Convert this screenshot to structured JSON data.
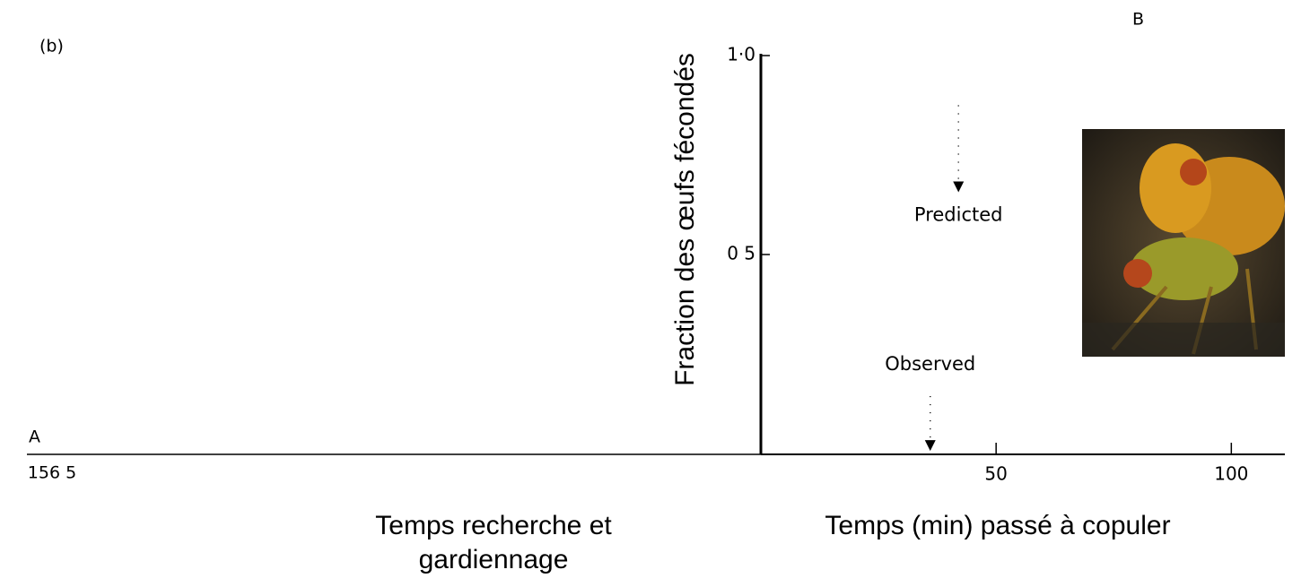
{
  "chart_data": {
    "type": "scatter",
    "panel_labels": [
      "(b)",
      "A",
      "B"
    ],
    "left_tick_label": "156 5",
    "left_x_label": [
      "Temps recherche et",
      "gardiennage"
    ],
    "x_label": "Temps (min) passé à copuler",
    "y_label": "Fraction des œufs fécondés",
    "xlim": [
      0,
      111
    ],
    "xticks": [
      50,
      100
    ],
    "ylim": [
      0,
      1
    ],
    "yticks": [
      {
        "value": 1,
        "label": "1·0"
      },
      {
        "value": 0.5,
        "label": "0 5"
      }
    ],
    "points": [
      {
        "name": "Predicted",
        "x": 42,
        "y": 0.67,
        "error": 0.21
      },
      {
        "name": "Observed",
        "x": 36,
        "y": 0.02,
        "error": 0.13
      }
    ],
    "color": "#000000"
  }
}
